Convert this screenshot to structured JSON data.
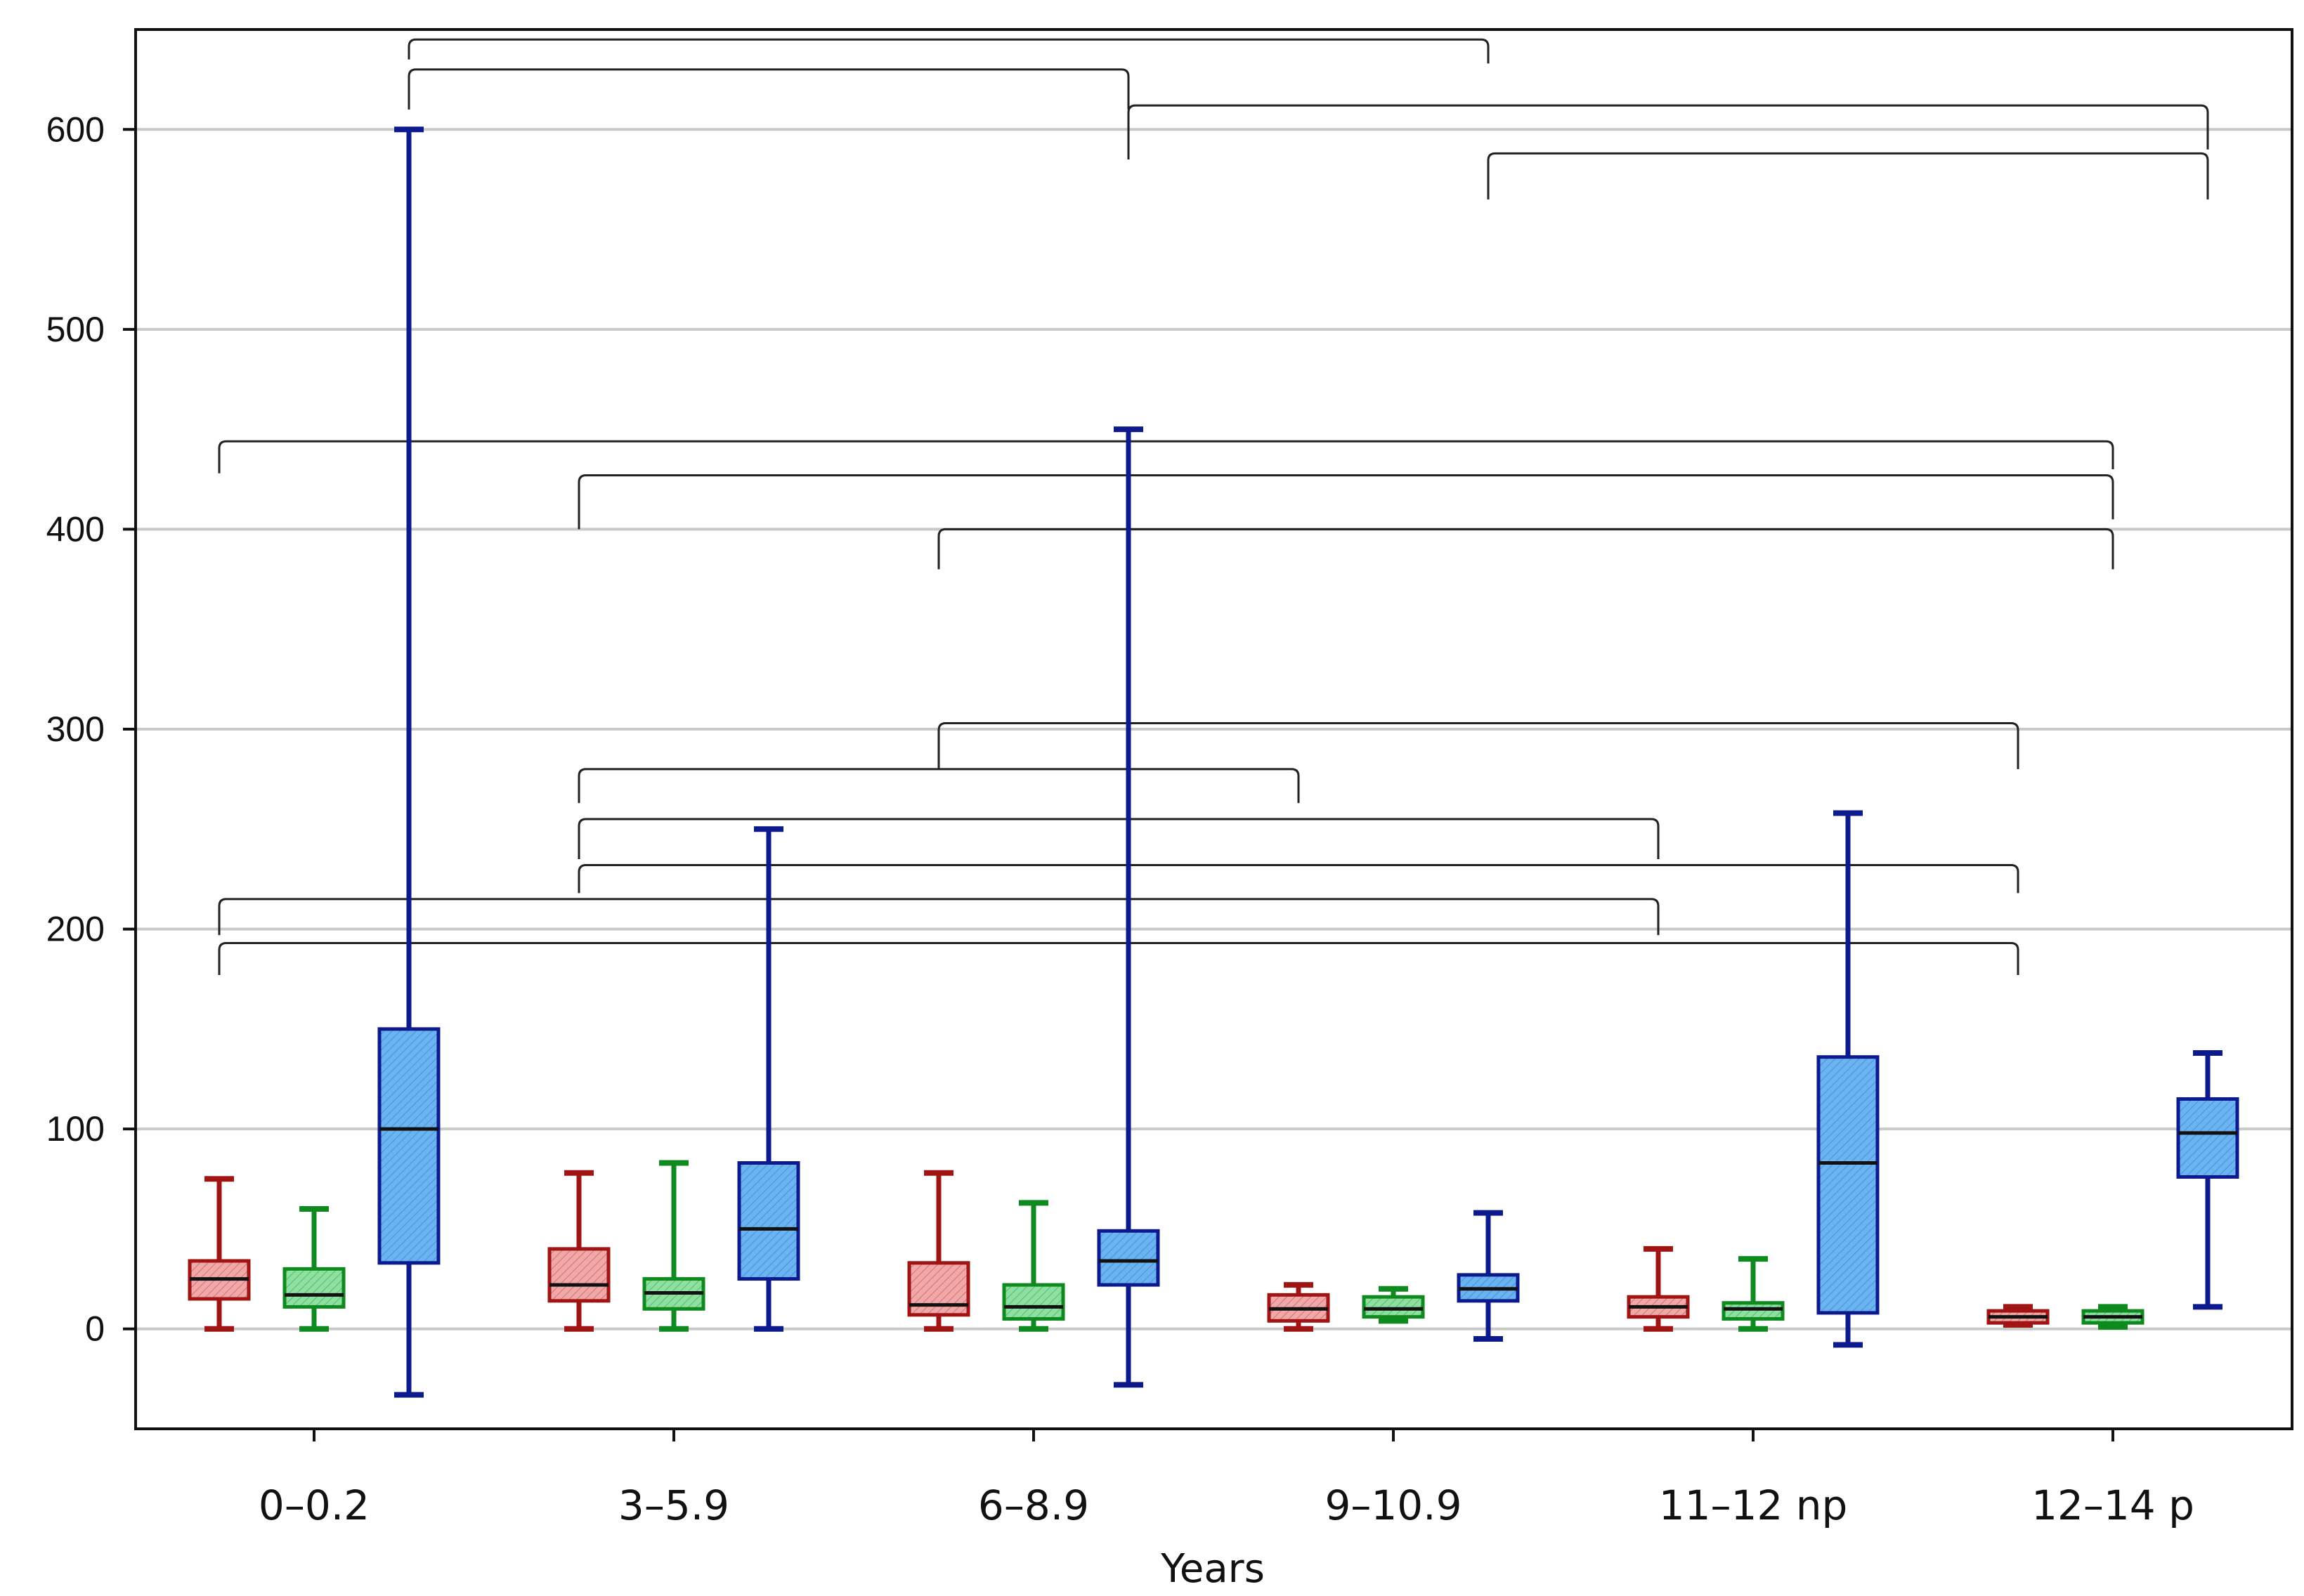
{
  "chart_data": {
    "type": "box",
    "title": "",
    "xlabel": "Years",
    "ylabel": "",
    "ylim": [
      -50,
      650
    ],
    "yticks": [
      0,
      100,
      200,
      300,
      400,
      500,
      600
    ],
    "grid": true,
    "categories": [
      "0–0.2",
      "3–5.9",
      "6–8.9",
      "9–10.9",
      "11–12 np",
      "12–14 p"
    ],
    "series_colors": [
      {
        "edge": "#a01414",
        "fill": "#f0a8a8"
      },
      {
        "edge": "#0f8a1f",
        "fill": "#8ee0a0"
      },
      {
        "edge": "#0c1a8e",
        "fill": "#6ab4f2"
      }
    ],
    "bracket_color": "#222222",
    "boxes": [
      {
        "group": 0,
        "series": 0,
        "min": 0,
        "q1": 15,
        "median": 25,
        "q3": 34,
        "max": 75
      },
      {
        "group": 0,
        "series": 1,
        "min": 0,
        "q1": 11,
        "median": 17,
        "q3": 30,
        "max": 60
      },
      {
        "group": 0,
        "series": 2,
        "min": -33,
        "q1": 33,
        "median": 100,
        "q3": 150,
        "max": 600
      },
      {
        "group": 1,
        "series": 0,
        "min": 0,
        "q1": 14,
        "median": 22,
        "q3": 40,
        "max": 78
      },
      {
        "group": 1,
        "series": 1,
        "min": 0,
        "q1": 10,
        "median": 18,
        "q3": 25,
        "max": 83
      },
      {
        "group": 1,
        "series": 2,
        "min": 0,
        "q1": 25,
        "median": 50,
        "q3": 83,
        "max": 250
      },
      {
        "group": 2,
        "series": 0,
        "min": 0,
        "q1": 7,
        "median": 12,
        "q3": 33,
        "max": 78
      },
      {
        "group": 2,
        "series": 1,
        "min": 0,
        "q1": 5,
        "median": 11,
        "q3": 22,
        "max": 63
      },
      {
        "group": 2,
        "series": 2,
        "min": -28,
        "q1": 22,
        "median": 34,
        "q3": 49,
        "max": 450
      },
      {
        "group": 3,
        "series": 0,
        "min": 0,
        "q1": 4,
        "median": 10,
        "q3": 17,
        "max": 22
      },
      {
        "group": 3,
        "series": 1,
        "min": 4,
        "q1": 6,
        "median": 10,
        "q3": 16,
        "max": 20
      },
      {
        "group": 3,
        "series": 2,
        "min": -5,
        "q1": 14,
        "median": 20,
        "q3": 27,
        "max": 58
      },
      {
        "group": 4,
        "series": 0,
        "min": 0,
        "q1": 6,
        "median": 11,
        "q3": 16,
        "max": 40
      },
      {
        "group": 4,
        "series": 1,
        "min": 0,
        "q1": 5,
        "median": 10,
        "q3": 13,
        "max": 35
      },
      {
        "group": 4,
        "series": 2,
        "min": -8,
        "q1": 8,
        "median": 83,
        "q3": 136,
        "max": 258
      },
      {
        "group": 5,
        "series": 0,
        "min": 2,
        "q1": 3,
        "median": 6,
        "q3": 9,
        "max": 11
      },
      {
        "group": 5,
        "series": 1,
        "min": 1,
        "q1": 3,
        "median": 6,
        "q3": 9,
        "max": 11
      },
      {
        "group": 5,
        "series": 2,
        "min": 11,
        "q1": 76,
        "median": 98,
        "q3": 115,
        "max": 138
      }
    ],
    "comparison_brackets": [
      {
        "from": [
          0,
          2
        ],
        "to": [
          3,
          2
        ],
        "y": 645,
        "left_drop": 635,
        "right_drop": 633
      },
      {
        "from": [
          0,
          2
        ],
        "to": [
          2,
          2
        ],
        "y": 630,
        "left_drop": 610,
        "right_drop": 610
      },
      {
        "from": [
          2,
          2
        ],
        "to": [
          5,
          2
        ],
        "y": 612,
        "left_drop": 585,
        "right_drop": 590
      },
      {
        "from": [
          3,
          2
        ],
        "to": [
          5,
          2
        ],
        "y": 588,
        "left_drop": 565,
        "right_drop": 565
      },
      {
        "from": [
          0,
          0
        ],
        "to": [
          5,
          1
        ],
        "y": 444,
        "left_drop": 428,
        "right_drop": 430
      },
      {
        "from": [
          1,
          0
        ],
        "to": [
          5,
          1
        ],
        "y": 427,
        "left_drop": 400,
        "right_drop": 405
      },
      {
        "from": [
          2,
          0
        ],
        "to": [
          5,
          1
        ],
        "y": 400,
        "left_drop": 380,
        "right_drop": 380
      },
      {
        "from": [
          2,
          0
        ],
        "to": [
          5,
          0
        ],
        "y": 303,
        "left_drop": 280,
        "right_drop": 280
      },
      {
        "from": [
          1,
          0
        ],
        "to": [
          3,
          0
        ],
        "y": 280,
        "left_drop": 263,
        "right_drop": 263
      },
      {
        "from": [
          1,
          0
        ],
        "to": [
          4,
          0
        ],
        "y": 255,
        "left_drop": 235,
        "right_drop": 235
      },
      {
        "from": [
          1,
          0
        ],
        "to": [
          5,
          0
        ],
        "y": 232,
        "left_drop": 218,
        "right_drop": 218
      },
      {
        "from": [
          0,
          0
        ],
        "to": [
          4,
          0
        ],
        "y": 215,
        "left_drop": 197,
        "right_drop": 197
      },
      {
        "from": [
          0,
          0
        ],
        "to": [
          5,
          0
        ],
        "y": 193,
        "left_drop": 177,
        "right_drop": 177
      }
    ]
  }
}
